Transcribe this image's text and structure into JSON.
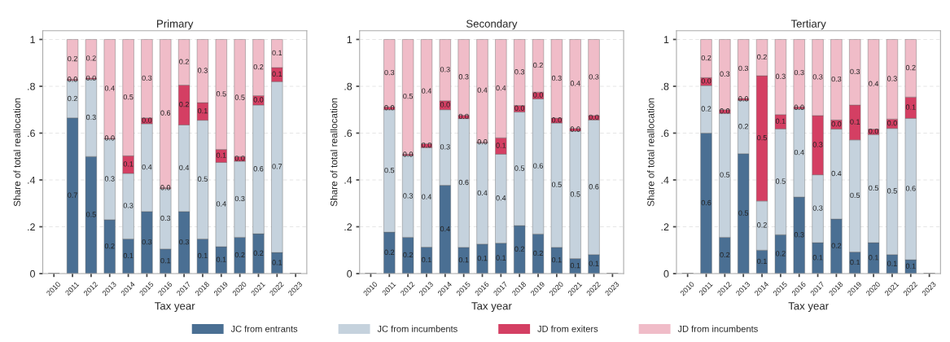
{
  "chart_data": [
    {
      "type": "bar",
      "title": "Primary",
      "xlabel": "Tax year",
      "ylabel": "Share of total reallocation",
      "stacked": true,
      "grid": "y",
      "legend": "bottom",
      "categories": [
        "2010",
        "2011",
        "2012",
        "2013",
        "2014",
        "2015",
        "2016",
        "2017",
        "2018",
        "2019",
        "2020",
        "2021",
        "2022",
        "2023"
      ],
      "ylim": [
        0,
        1.037
      ],
      "yticks": [
        0,
        {
          "value": 0.2,
          "label": ".2"
        },
        {
          "value": 0.4,
          "label": ".4"
        },
        {
          "value": 0.6,
          "label": ".6"
        },
        {
          "value": 0.8,
          "label": ".8"
        },
        1
      ],
      "series": [
        {
          "name": "JC from entrants",
          "color": "#4a6f93",
          "values": [
            null,
            0.665,
            0.5,
            0.23,
            0.148,
            0.265,
            0.105,
            0.265,
            0.148,
            0.115,
            0.155,
            0.17,
            0.09,
            null
          ],
          "value_labels": [
            null,
            "0.7",
            "0.5",
            "0.2",
            "0.1",
            "0.3",
            "0.1",
            "0.3",
            "0.1",
            "0.1",
            "0.2",
            "0.2",
            "0.1",
            null
          ]
        },
        {
          "name": "JC from incumbents",
          "color": "#c5d2dd",
          "values": [
            null,
            0.16,
            0.33,
            0.345,
            0.28,
            0.375,
            0.258,
            0.37,
            0.507,
            0.36,
            0.325,
            0.55,
            0.73,
            null
          ],
          "value_labels": [
            null,
            "0.2",
            "0.3",
            "0.3",
            "0.3",
            "0.4",
            "0.3",
            "0.4",
            "0.5",
            "0.4",
            "0.3",
            "0.6",
            "0.7",
            null
          ]
        },
        {
          "name": "JD from exiters",
          "color": "#d43f63",
          "values": [
            null,
            0.005,
            0.005,
            0.003,
            0.075,
            0.025,
            0.004,
            0.17,
            0.075,
            0.055,
            0.02,
            0.04,
            0.06,
            null
          ],
          "value_labels": [
            null,
            "0.0",
            "0.0",
            "0.0",
            "0.1",
            "0.0",
            "0.0",
            "0.2",
            "0.1",
            "0.1",
            "0.0",
            "0.0",
            "0.1",
            null
          ]
        },
        {
          "name": "JD from incumbents",
          "color": "#f0bcc8",
          "values": [
            null,
            0.17,
            0.165,
            0.422,
            0.497,
            0.335,
            0.633,
            0.195,
            0.27,
            0.47,
            0.5,
            0.24,
            0.12,
            null
          ],
          "value_labels": [
            null,
            "0.2",
            "0.2",
            "0.4",
            "0.5",
            "0.3",
            "0.6",
            "0.2",
            "0.3",
            "0.5",
            "0.5",
            "0.2",
            "0.1",
            null
          ]
        }
      ]
    },
    {
      "type": "bar",
      "title": "Secondary",
      "xlabel": "Tax year",
      "ylabel": "Share of total reallocation",
      "stacked": true,
      "grid": "y",
      "legend": "bottom",
      "categories": [
        "2010",
        "2011",
        "2012",
        "2013",
        "2014",
        "2015",
        "2016",
        "2017",
        "2018",
        "2019",
        "2020",
        "2021",
        "2022",
        "2023"
      ],
      "ylim": [
        0,
        1.037
      ],
      "yticks": [
        0,
        {
          "value": 0.2,
          "label": ".2"
        },
        {
          "value": 0.4,
          "label": ".4"
        },
        {
          "value": 0.6,
          "label": ".6"
        },
        {
          "value": 0.8,
          "label": ".8"
        },
        1
      ],
      "series": [
        {
          "name": "JC from entrants",
          "color": "#4a6f93",
          "values": [
            null,
            0.177,
            0.155,
            0.113,
            0.377,
            0.112,
            0.126,
            0.13,
            0.205,
            0.169,
            0.112,
            0.064,
            0.081,
            null
          ],
          "value_labels": [
            null,
            "0.2",
            "0.2",
            "0.1",
            "0.4",
            "0.1",
            "0.1",
            "0.1",
            "0.2",
            "0.2",
            "0.1",
            "0.1",
            "0.1",
            null
          ]
        },
        {
          "name": "JC from incumbents",
          "color": "#c5d2dd",
          "values": [
            null,
            0.523,
            0.349,
            0.425,
            0.323,
            0.55,
            0.432,
            0.38,
            0.485,
            0.577,
            0.531,
            0.545,
            0.575,
            null
          ],
          "value_labels": [
            null,
            "0.5",
            "0.3",
            "0.4",
            "0.3",
            "0.6",
            "0.4",
            "0.4",
            "0.5",
            "0.6",
            "0.5",
            "0.5",
            "0.6",
            null
          ]
        },
        {
          "name": "JD from exiters",
          "color": "#d43f63",
          "values": [
            null,
            0.012,
            0.006,
            0.017,
            0.038,
            0.014,
            0.004,
            0.07,
            0.028,
            0.029,
            0.021,
            0.011,
            0.019,
            null
          ],
          "value_labels": [
            null,
            "0.0",
            "0.0",
            "0.0",
            "0.0",
            "0.0",
            "0.0",
            "0.1",
            "0.0",
            "0.0",
            "0.0",
            "0.0",
            "0.0",
            null
          ]
        },
        {
          "name": "JD from incumbents",
          "color": "#f0bcc8",
          "values": [
            null,
            0.288,
            0.49,
            0.445,
            0.262,
            0.324,
            0.438,
            0.42,
            0.282,
            0.225,
            0.336,
            0.38,
            0.325,
            null
          ],
          "value_labels": [
            null,
            "0.3",
            "0.5",
            "0.4",
            "0.3",
            "0.3",
            "0.4",
            "0.4",
            "0.3",
            "0.2",
            "0.3",
            "0.4",
            "0.3",
            null
          ]
        }
      ]
    },
    {
      "type": "bar",
      "title": "Tertiary",
      "xlabel": "Tax year",
      "ylabel": "Share of total reallocation",
      "stacked": true,
      "grid": "y",
      "legend": "bottom",
      "categories": [
        "2010",
        "2011",
        "2012",
        "2013",
        "2014",
        "2015",
        "2016",
        "2017",
        "2018",
        "2019",
        "2020",
        "2021",
        "2022",
        "2023"
      ],
      "ylim": [
        0,
        1.037
      ],
      "yticks": [
        0,
        {
          "value": 0.2,
          "label": ".2"
        },
        {
          "value": 0.4,
          "label": ".4"
        },
        {
          "value": 0.6,
          "label": ".6"
        },
        {
          "value": 0.8,
          "label": ".8"
        },
        1
      ],
      "series": [
        {
          "name": "JC from entrants",
          "color": "#4a6f93",
          "values": [
            null,
            0.6,
            0.155,
            0.512,
            0.1,
            0.166,
            0.327,
            0.132,
            0.233,
            0.092,
            0.132,
            0.081,
            0.059,
            null
          ],
          "value_labels": [
            null,
            "0.6",
            "0.2",
            "0.5",
            "0.1",
            "0.2",
            "0.3",
            "0.1",
            "0.2",
            "0.1",
            "0.1",
            "0.1",
            "0.1",
            null
          ]
        },
        {
          "name": "JC from incumbents",
          "color": "#c5d2dd",
          "values": [
            null,
            0.203,
            0.529,
            0.228,
            0.21,
            0.452,
            0.376,
            0.29,
            0.384,
            0.479,
            0.462,
            0.539,
            0.604,
            null
          ],
          "value_labels": [
            null,
            "0.2",
            "0.5",
            "0.2",
            "0.2",
            "0.5",
            "0.4",
            "0.3",
            "0.4",
            "0.5",
            "0.5",
            "0.5",
            "0.6",
            null
          ]
        },
        {
          "name": "JD from exiters",
          "color": "#d43f63",
          "values": [
            null,
            0.034,
            0.016,
            0.008,
            0.535,
            0.061,
            0.009,
            0.253,
            0.039,
            0.149,
            0.023,
            0.04,
            0.091,
            null
          ],
          "value_labels": [
            null,
            "0.0",
            "0.0",
            "0.0",
            "0.5",
            "0.1",
            "0.0",
            "0.3",
            "0.0",
            "0.1",
            "0.0",
            "0.0",
            "0.1",
            null
          ]
        },
        {
          "name": "JD from incumbents",
          "color": "#f0bcc8",
          "values": [
            null,
            0.163,
            0.3,
            0.252,
            0.155,
            0.321,
            0.288,
            0.325,
            0.344,
            0.28,
            0.383,
            0.34,
            0.246,
            null
          ],
          "value_labels": [
            null,
            "0.2",
            "0.3",
            "0.3",
            "0.2",
            "0.3",
            "0.3",
            "0.3",
            "0.3",
            "0.3",
            "0.4",
            "0.3",
            "0.2",
            null
          ]
        }
      ]
    }
  ]
}
